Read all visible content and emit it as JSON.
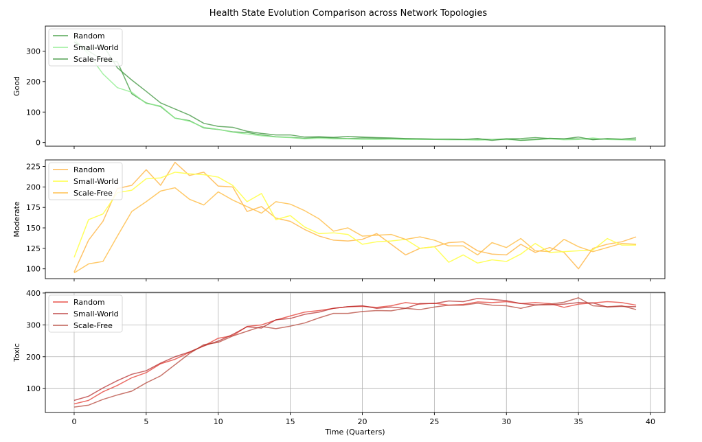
{
  "figure": {
    "title": "Health State Evolution Comparison across Network Topologies",
    "xlabel": "Time (Quarters)"
  },
  "chart_data": [
    {
      "type": "line",
      "ylabel": "Good",
      "xlim": [
        -2,
        41
      ],
      "ylim": [
        -12,
        382
      ],
      "yticks": [
        0,
        100,
        200,
        300
      ],
      "xticks": [
        0,
        5,
        10,
        15,
        20,
        25,
        30,
        35,
        40
      ],
      "grid": false,
      "legend_position": "top-left",
      "x": [
        0,
        1,
        2,
        3,
        4,
        5,
        6,
        7,
        8,
        9,
        10,
        11,
        12,
        13,
        14,
        15,
        16,
        17,
        18,
        19,
        20,
        21,
        22,
        23,
        24,
        25,
        26,
        27,
        28,
        29,
        30,
        31,
        32,
        33,
        34,
        35,
        36,
        37,
        38,
        39
      ],
      "series": [
        {
          "name": "Random",
          "color": "#3a9a3a",
          "opacity": 0.75,
          "values": [
            330,
            300,
            270,
            265,
            160,
            130,
            118,
            80,
            72,
            48,
            43,
            35,
            33,
            25,
            19,
            17,
            14,
            17,
            15,
            13,
            15,
            14,
            13,
            12,
            12,
            11,
            11,
            10,
            11,
            10,
            12,
            13,
            16,
            13,
            12,
            12,
            11,
            11,
            10,
            9
          ]
        },
        {
          "name": "Small-World",
          "color": "#90ee90",
          "opacity": 0.8,
          "values": [
            340,
            290,
            225,
            180,
            165,
            128,
            120,
            80,
            70,
            50,
            43,
            34,
            28,
            22,
            18,
            16,
            12,
            14,
            12,
            12,
            10,
            10,
            11,
            10,
            10,
            10,
            9,
            9,
            8,
            9,
            10,
            8,
            9,
            12,
            9,
            10,
            15,
            10,
            9,
            8
          ]
        },
        {
          "name": "Scale-Free",
          "color": "#2e8b2e",
          "opacity": 0.7,
          "values": [
            330,
            305,
            320,
            245,
            205,
            168,
            130,
            110,
            90,
            63,
            53,
            50,
            37,
            30,
            25,
            25,
            18,
            19,
            17,
            20,
            18,
            16,
            15,
            13,
            12,
            11,
            11,
            10,
            13,
            7,
            12,
            7,
            10,
            14,
            12,
            18,
            9,
            13,
            11,
            15
          ]
        }
      ]
    },
    {
      "type": "line",
      "ylabel": "Moderate",
      "xlim": [
        -2,
        41
      ],
      "ylim": [
        88,
        233
      ],
      "yticks": [
        100,
        125,
        150,
        175,
        200,
        225
      ],
      "xticks": [
        0,
        5,
        10,
        15,
        20,
        25,
        30,
        35,
        40
      ],
      "grid": false,
      "legend_position": "top-left",
      "x": [
        0,
        1,
        2,
        3,
        4,
        5,
        6,
        7,
        8,
        9,
        10,
        11,
        12,
        13,
        14,
        15,
        16,
        17,
        18,
        19,
        20,
        21,
        22,
        23,
        24,
        25,
        26,
        27,
        28,
        29,
        30,
        31,
        32,
        33,
        34,
        35,
        36,
        37,
        38,
        39
      ],
      "series": [
        {
          "name": "Random",
          "color": "#ffb84d",
          "opacity": 0.85,
          "values": [
            96,
            135,
            158,
            198,
            202,
            221,
            202,
            230,
            214,
            218,
            201,
            200,
            170,
            176,
            162,
            158,
            148,
            140,
            135,
            134,
            136,
            143,
            130,
            117,
            125,
            127,
            132,
            133,
            122,
            118,
            117,
            130,
            120,
            126,
            120,
            100,
            125,
            130,
            133,
            139
          ]
        },
        {
          "name": "Small-World",
          "color": "#ffff4d",
          "opacity": 0.9,
          "values": [
            114,
            160,
            167,
            193,
            196,
            210,
            211,
            218,
            216,
            215,
            212,
            202,
            182,
            192,
            160,
            165,
            151,
            143,
            144,
            142,
            130,
            133,
            134,
            136,
            125,
            127,
            108,
            117,
            107,
            111,
            109,
            118,
            131,
            120,
            121,
            122,
            123,
            137,
            129,
            129
          ]
        },
        {
          "name": "Scale-Free",
          "color": "#ffc04d",
          "opacity": 0.85,
          "values": [
            95,
            106,
            109,
            140,
            170,
            182,
            195,
            199,
            185,
            178,
            194,
            184,
            176,
            168,
            182,
            179,
            171,
            161,
            146,
            150,
            140,
            141,
            142,
            136,
            139,
            135,
            128,
            128,
            117,
            132,
            126,
            137,
            122,
            121,
            136,
            127,
            121,
            126,
            131,
            130
          ]
        }
      ]
    },
    {
      "type": "line",
      "ylabel": "Toxic",
      "xlim": [
        -2,
        41
      ],
      "ylim": [
        25,
        402
      ],
      "yticks": [
        100,
        200,
        300,
        400
      ],
      "xticks": [
        0,
        5,
        10,
        15,
        20,
        25,
        30,
        35,
        40
      ],
      "grid": true,
      "legend_position": "top-left",
      "x": [
        0,
        1,
        2,
        3,
        4,
        5,
        6,
        7,
        8,
        9,
        10,
        11,
        12,
        13,
        14,
        15,
        16,
        17,
        18,
        19,
        20,
        21,
        22,
        23,
        24,
        25,
        26,
        27,
        28,
        29,
        30,
        31,
        32,
        33,
        34,
        35,
        36,
        37,
        38,
        39
      ],
      "series": [
        {
          "name": "Random",
          "color": "#e8524a",
          "opacity": 0.85,
          "values": [
            52,
            63,
            90,
            110,
            134,
            150,
            178,
            192,
            214,
            234,
            258,
            266,
            295,
            300,
            315,
            328,
            340,
            345,
            352,
            357,
            358,
            355,
            360,
            370,
            365,
            368,
            362,
            364,
            372,
            370,
            373,
            367,
            370,
            367,
            355,
            365,
            369,
            373,
            370,
            362
          ]
        },
        {
          "name": "Small-World",
          "color": "#b22222",
          "opacity": 0.7,
          "values": [
            63,
            76,
            102,
            125,
            145,
            156,
            180,
            200,
            215,
            234,
            249,
            270,
            294,
            290,
            316,
            320,
            333,
            340,
            352,
            357,
            360,
            352,
            356,
            352,
            367,
            367,
            375,
            373,
            383,
            380,
            376,
            367,
            363,
            363,
            365,
            370,
            369,
            356,
            358,
            357
          ]
        },
        {
          "name": "Scale-Free",
          "color": "#b03a2e",
          "opacity": 0.7,
          "values": [
            42,
            48,
            66,
            80,
            92,
            118,
            140,
            175,
            210,
            238,
            245,
            265,
            280,
            295,
            288,
            296,
            306,
            322,
            336,
            336,
            342,
            345,
            344,
            352,
            348,
            356,
            362,
            362,
            368,
            362,
            360,
            352,
            362,
            365,
            371,
            385,
            360,
            357,
            360,
            348
          ]
        }
      ]
    }
  ]
}
